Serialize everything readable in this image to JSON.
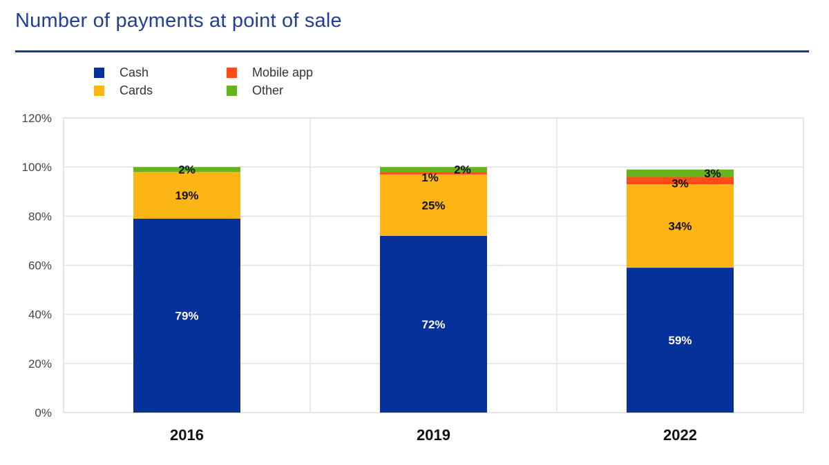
{
  "chart_data": {
    "type": "bar",
    "stacked": true,
    "title": "Number of payments at point of sale",
    "categories": [
      "2016",
      "2019",
      "2022"
    ],
    "series": [
      {
        "name": "Cash",
        "values": [
          79,
          72,
          59
        ],
        "labels": [
          "79%",
          "72%",
          "59%"
        ]
      },
      {
        "name": "Cards",
        "values": [
          19,
          25,
          34
        ],
        "labels": [
          "19%",
          "25%",
          "34%"
        ]
      },
      {
        "name": "Mobile app",
        "values": [
          0,
          1,
          3
        ],
        "labels": [
          "",
          "1%",
          "3%"
        ]
      },
      {
        "name": "Other",
        "values": [
          2,
          2,
          3
        ],
        "labels": [
          "2%",
          "2%",
          "3%"
        ]
      }
    ],
    "ylim": [
      0,
      120
    ],
    "yticks": [
      "0%",
      "20%",
      "40%",
      "60%",
      "80%",
      "100%",
      "120%"
    ],
    "grid": true,
    "legend_position": "top-left"
  },
  "colors": {
    "Cash": "#06319a",
    "Cards": "#fdb515",
    "Mobile app": "#ff4b14",
    "Other": "#64b41b",
    "title": "#1f3f99"
  }
}
